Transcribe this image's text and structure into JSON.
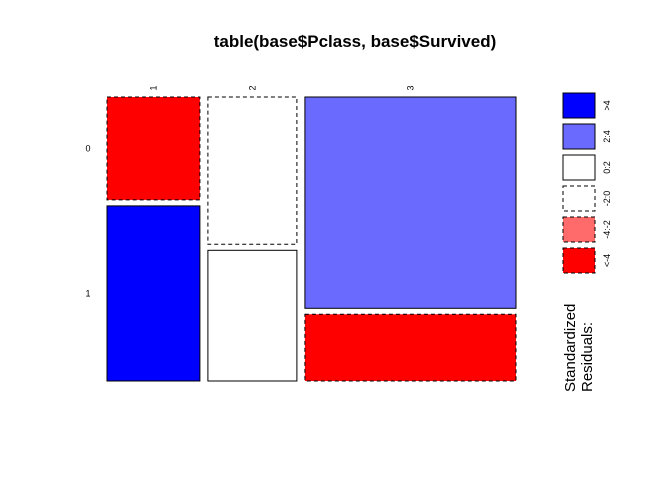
{
  "chart_data": {
    "type": "mosaic",
    "title": "table(base$Pclass, base$Survived)",
    "columns": [
      "1",
      "2",
      "3"
    ],
    "rows": [
      "0",
      "1"
    ],
    "cells": [
      {
        "col": "1",
        "row": "0",
        "fraction": 0.37,
        "residual_band": "<-4",
        "fill": "#FF0000",
        "dashed": true
      },
      {
        "col": "1",
        "row": "1",
        "fraction": 0.63,
        "residual_band": ">4",
        "fill": "#0000FF",
        "dashed": false
      },
      {
        "col": "2",
        "row": "0",
        "fraction": 0.53,
        "residual_band": "-2:0",
        "fill": "#FFFFFF",
        "dashed": true
      },
      {
        "col": "2",
        "row": "1",
        "fraction": 0.47,
        "residual_band": "0:2",
        "fill": "#FFFFFF",
        "dashed": false
      },
      {
        "col": "3",
        "row": "0",
        "fraction": 0.76,
        "residual_band": "2:4",
        "fill": "#6A6AFF",
        "dashed": false
      },
      {
        "col": "3",
        "row": "1",
        "fraction": 0.24,
        "residual_band": "<-4",
        "fill": "#FF0000",
        "dashed": true
      }
    ],
    "column_widths": [
      0.216,
      0.207,
      0.491
    ],
    "legend": {
      "title_lines": [
        "Standardized",
        "Residuals:"
      ],
      "entries": [
        {
          "label": ">4",
          "fill": "#0000FF",
          "dashed": false
        },
        {
          "label": "2:4",
          "fill": "#6A6AFF",
          "dashed": false
        },
        {
          "label": "0:2",
          "fill": "#FFFFFF",
          "dashed": false
        },
        {
          "label": "-2:0",
          "fill": "#FFFFFF",
          "dashed": true
        },
        {
          "label": "-4:-2",
          "fill": "#FF6A6A",
          "dashed": true
        },
        {
          "label": "<-4",
          "fill": "#FF0000",
          "dashed": true
        }
      ]
    }
  }
}
